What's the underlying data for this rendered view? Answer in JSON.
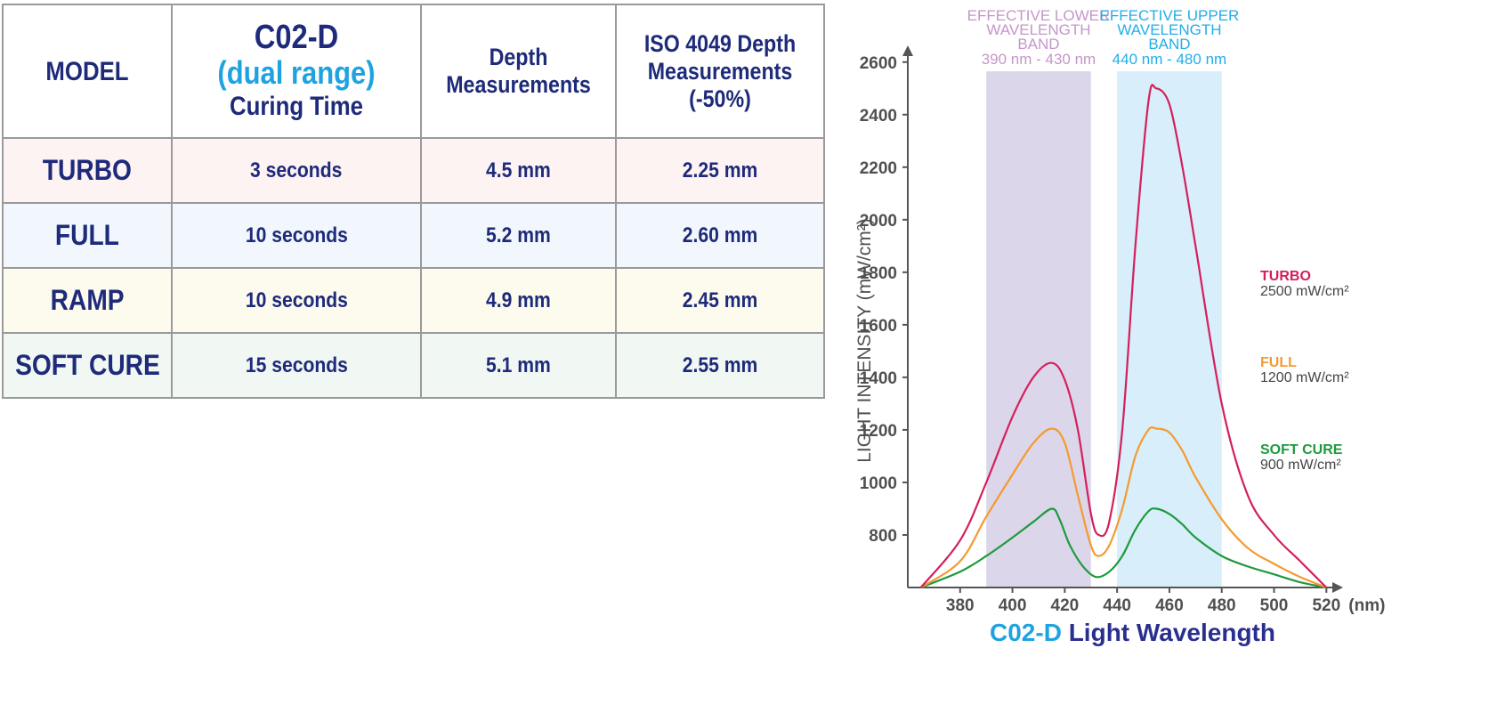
{
  "table": {
    "headers": {
      "model": "MODEL",
      "curing_line1": "C02-D",
      "curing_line2": "(dual range)",
      "curing_line3": "Curing Time",
      "depth_line1": "Depth",
      "depth_line2": "Measurements",
      "iso_line1": "ISO 4049 Depth",
      "iso_line2": "Measurements",
      "iso_line3": "(-50%)"
    },
    "rows": [
      {
        "model": "TURBO",
        "time": "3 seconds",
        "depth": "4.5 mm",
        "iso": "2.25 mm"
      },
      {
        "model": "FULL",
        "time": "10 seconds",
        "depth": "5.2 mm",
        "iso": "2.60 mm"
      },
      {
        "model": "RAMP",
        "time": "10 seconds",
        "depth": "4.9 mm",
        "iso": "2.45 mm"
      },
      {
        "model": "SOFT CURE",
        "time": "15 seconds",
        "depth": "5.1 mm",
        "iso": "2.55 mm"
      }
    ]
  },
  "chart_data": {
    "type": "line",
    "title_part1": "C02-D",
    "title_part2": " Light Wavelength",
    "ylabel": "LIGHT INTENSITY (mW/cm²)",
    "x_unit": "(nm)",
    "xlim": [
      360,
      525
    ],
    "ylim": [
      600,
      2650
    ],
    "x_ticks": [
      380,
      400,
      420,
      440,
      460,
      480,
      500,
      520
    ],
    "y_ticks": [
      800,
      1000,
      1200,
      1400,
      1600,
      1800,
      2000,
      2200,
      2400,
      2600
    ],
    "grid": false,
    "bands": [
      {
        "range": [
          390,
          430
        ],
        "color": "#dcd6ea",
        "label_lines": [
          "EFFECTIVE LOWER",
          "WAVELENGTH",
          "BAND"
        ],
        "range_label": "390 nm - 430 nm",
        "text_color": "#c596c8"
      },
      {
        "range": [
          440,
          480
        ],
        "color": "#d8eefa",
        "label_lines": [
          "EFFECTIVE UPPER",
          "WAVELENGTH",
          "BAND"
        ],
        "range_label": "440 nm - 480 nm",
        "text_color": "#22aee6"
      }
    ],
    "series": [
      {
        "name": "TURBO",
        "sub": "2500 mW/cm²",
        "color": "#d4205a",
        "points": [
          [
            365,
            600
          ],
          [
            380,
            780
          ],
          [
            390,
            1000
          ],
          [
            400,
            1250
          ],
          [
            408,
            1400
          ],
          [
            415,
            1455
          ],
          [
            420,
            1390
          ],
          [
            425,
            1200
          ],
          [
            430,
            880
          ],
          [
            433,
            800
          ],
          [
            437,
            850
          ],
          [
            442,
            1200
          ],
          [
            447,
            1900
          ],
          [
            452,
            2450
          ],
          [
            455,
            2500
          ],
          [
            460,
            2440
          ],
          [
            465,
            2200
          ],
          [
            470,
            1900
          ],
          [
            480,
            1300
          ],
          [
            490,
            950
          ],
          [
            500,
            800
          ],
          [
            510,
            700
          ],
          [
            520,
            600
          ]
        ]
      },
      {
        "name": "FULL",
        "sub": "1200 mW/cm²",
        "color": "#f59a30",
        "points": [
          [
            365,
            600
          ],
          [
            380,
            700
          ],
          [
            390,
            870
          ],
          [
            400,
            1030
          ],
          [
            408,
            1150
          ],
          [
            415,
            1205
          ],
          [
            420,
            1150
          ],
          [
            425,
            950
          ],
          [
            430,
            760
          ],
          [
            433,
            720
          ],
          [
            437,
            760
          ],
          [
            442,
            900
          ],
          [
            447,
            1100
          ],
          [
            452,
            1200
          ],
          [
            455,
            1205
          ],
          [
            460,
            1190
          ],
          [
            465,
            1120
          ],
          [
            470,
            1020
          ],
          [
            480,
            860
          ],
          [
            490,
            750
          ],
          [
            500,
            690
          ],
          [
            510,
            640
          ],
          [
            520,
            600
          ]
        ]
      },
      {
        "name": "SOFT CURE",
        "sub": "900 mW/cm²",
        "color": "#1e9a3e",
        "points": [
          [
            365,
            600
          ],
          [
            380,
            660
          ],
          [
            390,
            720
          ],
          [
            400,
            790
          ],
          [
            408,
            850
          ],
          [
            415,
            900
          ],
          [
            418,
            860
          ],
          [
            422,
            760
          ],
          [
            427,
            680
          ],
          [
            432,
            640
          ],
          [
            437,
            660
          ],
          [
            442,
            720
          ],
          [
            447,
            820
          ],
          [
            452,
            890
          ],
          [
            455,
            900
          ],
          [
            460,
            880
          ],
          [
            465,
            840
          ],
          [
            470,
            790
          ],
          [
            480,
            720
          ],
          [
            490,
            680
          ],
          [
            500,
            650
          ],
          [
            510,
            620
          ],
          [
            520,
            600
          ]
        ]
      }
    ]
  }
}
